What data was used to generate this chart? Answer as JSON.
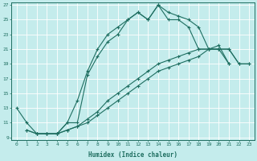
{
  "xlabel": "Humidex (Indice chaleur)",
  "bg_color": "#c4ecec",
  "grid_color": "#ffffff",
  "line_color": "#1e6e60",
  "xlim": [
    0,
    23
  ],
  "ylim": [
    9,
    27
  ],
  "xticks": [
    0,
    1,
    2,
    3,
    4,
    5,
    6,
    7,
    8,
    9,
    10,
    11,
    12,
    13,
    14,
    15,
    16,
    17,
    18,
    19,
    20,
    21,
    22,
    23
  ],
  "yticks": [
    9,
    11,
    13,
    15,
    17,
    19,
    21,
    23,
    25,
    27
  ],
  "lines": [
    {
      "x": [
        0,
        1,
        2,
        3,
        4,
        5,
        6,
        7,
        8,
        9,
        10,
        11,
        12,
        13,
        14,
        15,
        16,
        17,
        18,
        19,
        20,
        21
      ],
      "y": [
        13,
        11,
        9.5,
        9.5,
        9.5,
        11,
        14,
        18,
        21,
        23,
        24,
        25,
        26,
        25,
        27,
        26,
        25.5,
        25,
        24,
        21,
        21.5,
        19
      ]
    },
    {
      "x": [
        2,
        3,
        4,
        5,
        6,
        7,
        8,
        9,
        10,
        11,
        12,
        13,
        14,
        15,
        16,
        17,
        18,
        19,
        20,
        21
      ],
      "y": [
        9.5,
        9.5,
        9.5,
        11,
        11,
        17.5,
        20,
        22,
        23,
        25,
        26,
        25,
        27,
        25,
        25,
        24,
        21,
        21,
        21,
        19
      ]
    },
    {
      "x": [
        1,
        2,
        3,
        4,
        5,
        6,
        7,
        8,
        9,
        10,
        11,
        12,
        13,
        14,
        15,
        16,
        17,
        18,
        19,
        20,
        21,
        22,
        23
      ],
      "y": [
        10,
        9.5,
        9.5,
        9.5,
        10,
        10.5,
        11,
        12,
        13,
        14,
        15,
        16,
        17,
        18,
        18.5,
        19,
        19.5,
        20,
        21,
        21,
        21,
        19,
        19
      ]
    },
    {
      "x": [
        1,
        2,
        3,
        4,
        5,
        6,
        7,
        8,
        9,
        10,
        11,
        12,
        13,
        14,
        15,
        16,
        17,
        18,
        19,
        20,
        21,
        22,
        23
      ],
      "y": [
        10,
        9.5,
        9.5,
        9.5,
        10,
        10.5,
        11.5,
        12.5,
        14,
        15,
        16,
        17,
        18,
        19,
        19.5,
        20,
        20.5,
        21,
        21,
        21,
        21,
        19,
        19
      ]
    }
  ]
}
